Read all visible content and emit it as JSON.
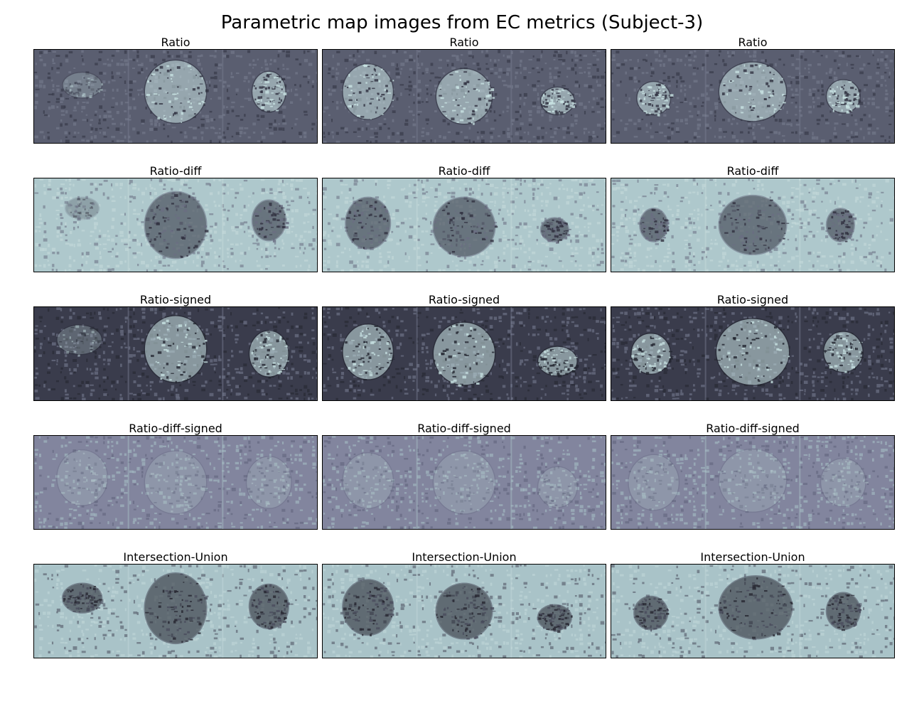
{
  "title": "Parametric map images from EC metrics (Subject-3)",
  "panels": [
    {
      "title": "Ratio",
      "colors": {
        "base": "#5a5e70",
        "noise": "#7a7f92",
        "feature": "#c8e2e2",
        "dark": "#2f3140"
      },
      "blobs": [
        [
          0.17,
          0.38,
          0.07,
          0.14,
          "faint"
        ],
        [
          0.5,
          0.45,
          0.11,
          0.34,
          "bright"
        ],
        [
          0.83,
          0.45,
          0.06,
          0.22,
          "bright"
        ]
      ]
    },
    {
      "title": "Ratio",
      "colors": {
        "base": "#5a5e70",
        "noise": "#7a7f92",
        "feature": "#c8e2e2",
        "dark": "#2f3140"
      },
      "blobs": [
        [
          0.16,
          0.45,
          0.09,
          0.3,
          "bright"
        ],
        [
          0.5,
          0.5,
          0.1,
          0.3,
          "bright"
        ],
        [
          0.83,
          0.55,
          0.06,
          0.15,
          "bright"
        ]
      ]
    },
    {
      "title": "Ratio",
      "colors": {
        "base": "#5a5e70",
        "noise": "#7a7f92",
        "feature": "#c8e2e2",
        "dark": "#2f3140"
      },
      "blobs": [
        [
          0.15,
          0.52,
          0.06,
          0.18,
          "bright"
        ],
        [
          0.5,
          0.45,
          0.12,
          0.32,
          "bright"
        ],
        [
          0.82,
          0.5,
          0.06,
          0.18,
          "bright"
        ]
      ]
    },
    {
      "title": "Ratio-diff",
      "colors": {
        "base": "#aec8cc",
        "noise": "#c8dcdc",
        "feature": "#30303f",
        "dark": "#6a6e82"
      },
      "blobs": [
        [
          0.17,
          0.32,
          0.06,
          0.12,
          "faint"
        ],
        [
          0.5,
          0.5,
          0.11,
          0.36,
          "bright"
        ],
        [
          0.83,
          0.45,
          0.06,
          0.22,
          "bright"
        ]
      ]
    },
    {
      "title": "Ratio-diff",
      "colors": {
        "base": "#aec8cc",
        "noise": "#c8dcdc",
        "feature": "#30303f",
        "dark": "#6a6e82"
      },
      "blobs": [
        [
          0.16,
          0.48,
          0.08,
          0.28,
          "bright"
        ],
        [
          0.5,
          0.52,
          0.11,
          0.32,
          "bright"
        ],
        [
          0.82,
          0.55,
          0.05,
          0.13,
          "bright"
        ]
      ]
    },
    {
      "title": "Ratio-diff",
      "colors": {
        "base": "#aec8cc",
        "noise": "#c8dcdc",
        "feature": "#30303f",
        "dark": "#6a6e82"
      },
      "blobs": [
        [
          0.15,
          0.5,
          0.05,
          0.18,
          "bright"
        ],
        [
          0.5,
          0.5,
          0.12,
          0.32,
          "bright"
        ],
        [
          0.81,
          0.5,
          0.05,
          0.18,
          "bright"
        ]
      ]
    },
    {
      "title": "Ratio-signed",
      "colors": {
        "base": "#3a3c4c",
        "noise": "#7a8096",
        "feature": "#c8e2e2",
        "dark": "#22242e"
      },
      "blobs": [
        [
          0.16,
          0.35,
          0.08,
          0.16,
          "faint"
        ],
        [
          0.5,
          0.45,
          0.11,
          0.36,
          "bright"
        ],
        [
          0.83,
          0.5,
          0.07,
          0.25,
          "bright"
        ]
      ]
    },
    {
      "title": "Ratio-signed",
      "colors": {
        "base": "#3a3c4c",
        "noise": "#7a8096",
        "feature": "#c8e2e2",
        "dark": "#22242e"
      },
      "blobs": [
        [
          0.16,
          0.48,
          0.09,
          0.3,
          "bright"
        ],
        [
          0.5,
          0.5,
          0.11,
          0.34,
          "bright"
        ],
        [
          0.83,
          0.58,
          0.07,
          0.16,
          "bright"
        ]
      ]
    },
    {
      "title": "Ratio-signed",
      "colors": {
        "base": "#3a3c4c",
        "noise": "#7a8096",
        "feature": "#c8e2e2",
        "dark": "#22242e"
      },
      "blobs": [
        [
          0.14,
          0.5,
          0.07,
          0.22,
          "bright"
        ],
        [
          0.5,
          0.48,
          0.13,
          0.36,
          "bright"
        ],
        [
          0.82,
          0.48,
          0.07,
          0.22,
          "bright"
        ]
      ]
    },
    {
      "title": "Ratio-diff-signed",
      "colors": {
        "base": "#82859e",
        "noise": "#a9c3c8",
        "feature": "#b4c8cc",
        "dark": "#5e617a"
      },
      "blobs": [
        [
          0.17,
          0.45,
          0.09,
          0.3,
          "faint"
        ],
        [
          0.5,
          0.5,
          0.11,
          0.34,
          "faint"
        ],
        [
          0.83,
          0.5,
          0.08,
          0.28,
          "faint"
        ]
      ]
    },
    {
      "title": "Ratio-diff-signed",
      "colors": {
        "base": "#82859e",
        "noise": "#a9c3c8",
        "feature": "#b4c8cc",
        "dark": "#5e617a"
      },
      "blobs": [
        [
          0.16,
          0.48,
          0.09,
          0.3,
          "faint"
        ],
        [
          0.5,
          0.5,
          0.11,
          0.34,
          "faint"
        ],
        [
          0.83,
          0.55,
          0.07,
          0.22,
          "faint"
        ]
      ]
    },
    {
      "title": "Ratio-diff-signed",
      "colors": {
        "base": "#82859e",
        "noise": "#a9c3c8",
        "feature": "#b4c8cc",
        "dark": "#5e617a"
      },
      "blobs": [
        [
          0.15,
          0.5,
          0.09,
          0.3,
          "faint"
        ],
        [
          0.5,
          0.48,
          0.12,
          0.34,
          "faint"
        ],
        [
          0.82,
          0.5,
          0.08,
          0.26,
          "faint"
        ]
      ]
    },
    {
      "title": "Intersection-Union",
      "colors": {
        "base": "#a9c3c8",
        "noise": "#c3d8da",
        "feature": "#25252f",
        "dark": "#4a4c5c"
      },
      "blobs": [
        [
          0.17,
          0.36,
          0.07,
          0.16,
          "bright"
        ],
        [
          0.5,
          0.47,
          0.11,
          0.38,
          "bright"
        ],
        [
          0.83,
          0.45,
          0.07,
          0.24,
          "bright"
        ]
      ]
    },
    {
      "title": "Intersection-Union",
      "colors": {
        "base": "#a9c3c8",
        "noise": "#c3d8da",
        "feature": "#25252f",
        "dark": "#4a4c5c"
      },
      "blobs": [
        [
          0.16,
          0.46,
          0.09,
          0.3,
          "bright"
        ],
        [
          0.5,
          0.5,
          0.1,
          0.3,
          "bright"
        ],
        [
          0.82,
          0.57,
          0.06,
          0.14,
          "bright"
        ]
      ]
    },
    {
      "title": "Intersection-Union",
      "colors": {
        "base": "#a9c3c8",
        "noise": "#c3d8da",
        "feature": "#25252f",
        "dark": "#4a4c5c"
      },
      "blobs": [
        [
          0.14,
          0.52,
          0.06,
          0.18,
          "bright"
        ],
        [
          0.51,
          0.46,
          0.13,
          0.34,
          "bright"
        ],
        [
          0.82,
          0.5,
          0.06,
          0.2,
          "bright"
        ]
      ]
    }
  ]
}
